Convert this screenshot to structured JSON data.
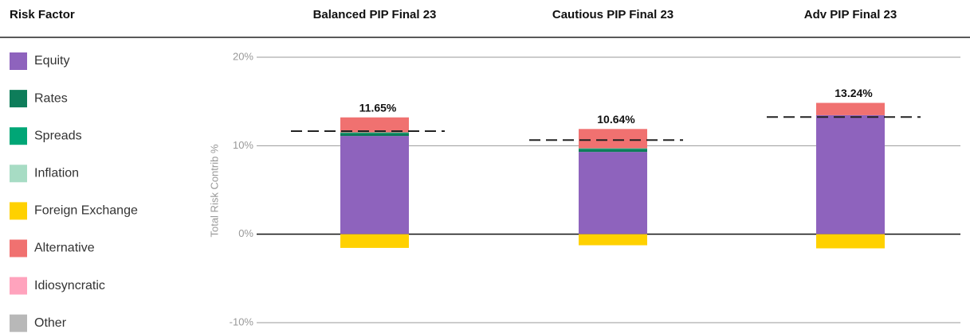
{
  "chart_data": {
    "type": "stacked_bar",
    "legend_title": "Risk Factor",
    "y_label": "Total Risk Contrib %",
    "categories": [
      "Balanced PIP Final 23",
      "Cautious PIP Final 23",
      "Adv PIP Final 23"
    ],
    "series": [
      {
        "name": "Equity",
        "color": "#8e63bd",
        "values": [
          11.1,
          9.3,
          13.45
        ]
      },
      {
        "name": "Rates",
        "color": "#0e7d5a",
        "values": [
          0.3,
          0.3,
          0
        ]
      },
      {
        "name": "Spreads",
        "color": "#00a676",
        "values": [
          0.1,
          0.1,
          0
        ]
      },
      {
        "name": "Inflation",
        "color": "#a7dcc4",
        "values": [
          0,
          0,
          0
        ]
      },
      {
        "name": "Foreign Exchange",
        "color": "#ffd100",
        "values": [
          -1.55,
          -1.25,
          -1.6
        ]
      },
      {
        "name": "Alternative",
        "color": "#f07170",
        "values": [
          1.7,
          2.19,
          1.39
        ]
      },
      {
        "name": "Idiosyncratic",
        "color": "#ffa3bd",
        "values": [
          0,
          0,
          0
        ]
      },
      {
        "name": "Other",
        "color": "#b8b8b8",
        "values": [
          0,
          0,
          0
        ]
      }
    ],
    "totals": [
      11.65,
      10.64,
      13.24
    ],
    "total_labels": [
      "11.65%",
      "10.64%",
      "13.24%"
    ],
    "ylim": [
      -10,
      20
    ],
    "yticks": [
      {
        "value": -10,
        "label": "-10%"
      },
      {
        "value": 0,
        "label": "0%"
      },
      {
        "value": 10,
        "label": "10%"
      },
      {
        "value": 20,
        "label": "20%"
      }
    ],
    "grid": true
  }
}
